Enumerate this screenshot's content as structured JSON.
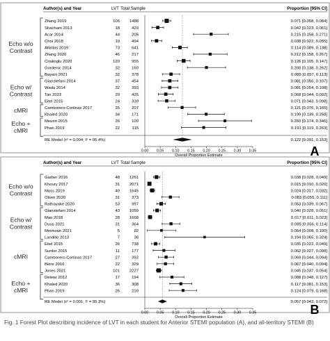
{
  "headers": {
    "study": "Author(s) and Year",
    "lvt": "LVT",
    "total": "Total Sample",
    "proportion": "Proportion [95% CI]"
  },
  "axis_title": "Overall Proportion Estimate",
  "caption": "Fig. 1 Forest Plot describing incidence of LVT in each student for Anterior STEMI population (A), and all-territory STEMI (B)",
  "chart_data": [
    {
      "panel": "A",
      "type": "forest",
      "xlim": [
        0.0,
        0.35
      ],
      "xticks": [
        "0.00",
        "0.05",
        "0.10",
        "0.15",
        "0.20",
        "0.25",
        "0.30",
        "0.35"
      ],
      "groups": [
        {
          "label": [
            "Echo w/o",
            "Contrast"
          ],
          "from": 0,
          "to": 8
        },
        {
          "label": [
            "Echo w/",
            "Contrast"
          ],
          "from": 9,
          "to": 12
        },
        {
          "label": [
            "cMRI"
          ],
          "from": 13,
          "to": 14
        },
        {
          "label": [
            "Echo +",
            "cMRI"
          ],
          "from": 15,
          "to": 17
        }
      ],
      "studies": [
        {
          "study": "Zhang 2019",
          "lvt": "106",
          "total": "1488",
          "est": 0.071,
          "lo": 0.058,
          "hi": 0.084,
          "ci": "0.071 [0.058, 0.084]"
        },
        {
          "study": "Shacham 2013",
          "lvt": "18",
          "total": "429",
          "est": 0.042,
          "lo": 0.023,
          "hi": 0.061,
          "ci": "0.042 [0.023, 0.061]"
        },
        {
          "study": "Acar 2014",
          "lvt": "44",
          "total": "205",
          "est": 0.215,
          "lo": 0.158,
          "hi": 0.271,
          "ci": "0.215 [0.158, 0.271]"
        },
        {
          "study": "Choi 2018",
          "lvt": "19",
          "total": "494",
          "est": 0.038,
          "lo": 0.022,
          "hi": 0.055,
          "ci": "0.038 [0.022, 0.055]"
        },
        {
          "study": "Altintas 2019",
          "lvt": "73",
          "total": "641",
          "est": 0.114,
          "lo": 0.089,
          "hi": 0.138,
          "ci": "0.114 [0.089, 0.138]"
        },
        {
          "study": "Zhang 2020",
          "lvt": "46",
          "total": "217",
          "est": 0.212,
          "lo": 0.158,
          "hi": 0.267,
          "ci": "0.212 [0.158, 0.267]"
        },
        {
          "study": "Ciralioglu 2020",
          "lvt": "120",
          "total": "955",
          "est": 0.126,
          "lo": 0.105,
          "hi": 0.147,
          "ci": "0.126 [0.105, 0.147]"
        },
        {
          "study": "Gordenic 2014",
          "lvt": "32",
          "total": "160",
          "est": 0.2,
          "lo": 0.138,
          "hi": 0.262,
          "ci": "0.200 [0.138, 0.262]"
        },
        {
          "study": "Bayani 2021",
          "lvt": "32",
          "total": "378",
          "est": 0.085,
          "lo": 0.057,
          "hi": 0.113,
          "ci": "0.085 [0.057, 0.113]"
        },
        {
          "study": "Gianstefani 2014",
          "lvt": "37",
          "total": "454",
          "est": 0.081,
          "lo": 0.056,
          "hi": 0.107,
          "ci": "0.081 [0.056, 0.107]"
        },
        {
          "study": "Wada 2014",
          "lvt": "32",
          "total": "393",
          "est": 0.081,
          "lo": 0.054,
          "hi": 0.108,
          "ci": "0.081 [0.054, 0.108]"
        },
        {
          "study": "Tan 2022",
          "lvt": "29",
          "total": "425",
          "est": 0.068,
          "lo": 0.044,
          "hi": 0.092,
          "ci": "0.068 [0.044, 0.092]"
        },
        {
          "study": "Eitel 2015",
          "lvt": "24",
          "total": "339",
          "est": 0.071,
          "lo": 0.043,
          "hi": 0.098,
          "ci": "0.071 [0.043, 0.098]"
        },
        {
          "study": "Camborero-Cortinas 2017",
          "lvt": "25",
          "total": "207",
          "est": 0.121,
          "lo": 0.076,
          "hi": 0.165,
          "ci": "0.121 [0.076, 0.165]"
        },
        {
          "study": "Khaled 2020",
          "lvt": "34",
          "total": "171",
          "est": 0.199,
          "lo": 0.139,
          "hi": 0.258,
          "ci": "0.199 [0.139, 0.258]"
        },
        {
          "study": "Meurin 2015",
          "lvt": "26",
          "total": "100",
          "est": 0.26,
          "lo": 0.174,
          "hi": 0.346,
          "ci": "0.260 [0.174, 0.346]"
        },
        {
          "study": "Phan 2019",
          "lvt": "22",
          "total": "115",
          "est": 0.191,
          "lo": 0.119,
          "hi": 0.263,
          "ci": "0.191 [0.119, 0.263]"
        }
      ],
      "summary": {
        "label": "RE Model (τ² = 0.004; I² = 95.4%)",
        "est": 0.122,
        "lo": 0.091,
        "hi": 0.153,
        "ci": "0.122 [0.091, 0.153]"
      }
    },
    {
      "panel": "B",
      "type": "forest",
      "xlim": [
        0.0,
        0.35
      ],
      "xticks": [
        "0.00",
        "0.05",
        "0.10",
        "0.15",
        "0.20",
        "0.25",
        "0.30",
        "0.35"
      ],
      "groups": [
        {
          "label": [
            "Echo w/o",
            "Contrast"
          ],
          "from": 0,
          "to": 4
        },
        {
          "label": [
            "Echo w/",
            "Contrast"
          ],
          "from": 5,
          "to": 9
        },
        {
          "label": [
            "cMRI"
          ],
          "from": 10,
          "to": 14
        },
        {
          "label": [
            "Echo +",
            "cMRI"
          ],
          "from": 15,
          "to": 18
        }
      ],
      "studies": [
        {
          "study": "Garber 2016",
          "lvt": "48",
          "total": "1261",
          "est": 0.038,
          "lo": 0.028,
          "hi": 0.049,
          "ci": "0.038 [0.028, 0.049]"
        },
        {
          "study": "Khoury 2017",
          "lvt": "31",
          "total": "2071",
          "est": 0.015,
          "lo": 0.01,
          "hi": 0.02,
          "ci": "0.015 [0.010, 0.020]"
        },
        {
          "study": "Moss 2019",
          "lvt": "40",
          "total": "1645",
          "est": 0.024,
          "lo": 0.017,
          "hi": 0.032,
          "ci": "0.024 [0.017, 0.032]"
        },
        {
          "study": "Olsen 2020",
          "lvt": "31",
          "total": "373",
          "est": 0.083,
          "lo": 0.055,
          "hi": 0.111,
          "ci": "0.083 [0.055, 0.111]"
        },
        {
          "study": "Rathayake 2020",
          "lvt": "53",
          "total": "997",
          "est": 0.053,
          "lo": 0.039,
          "hi": 0.067,
          "ci": "0.053 [0.039, 0.067]"
        },
        {
          "study": "Gianstefani 2014",
          "lvt": "43",
          "total": "1059",
          "est": 0.04,
          "lo": 0.028,
          "hi": 0.051,
          "ci": "0.040 [0.028, 0.051]"
        },
        {
          "study": "Mao 2018",
          "lvt": "28",
          "total": "1668",
          "est": 0.017,
          "lo": 0.011,
          "hi": 0.023,
          "ci": "0.017 [0.011, 0.023]"
        },
        {
          "study": "Duus 2021",
          "lvt": "31",
          "total": "364",
          "est": 0.085,
          "lo": 0.056,
          "hi": 0.114,
          "ci": "0.085 [0.056, 0.114]"
        },
        {
          "study": "Meimoun 2021",
          "lvt": "5",
          "total": "92",
          "est": 0.054,
          "lo": 0.008,
          "hi": 0.1,
          "ci": "0.054 [0.008, 0.100]"
        },
        {
          "study": "Landillo 2013",
          "lvt": "7",
          "total": "36",
          "est": 0.194,
          "lo": 0.065,
          "hi": 0.324,
          "ci": "0.194 [0.065, 0.324]"
        },
        {
          "study": "Eitel 2015",
          "lvt": "26",
          "total": "738",
          "est": 0.035,
          "lo": 0.022,
          "hi": 0.049,
          "ci": "0.035 [0.022, 0.049]"
        },
        {
          "study": "Surder 2015",
          "lvt": "11",
          "total": "177",
          "est": 0.062,
          "lo": 0.027,
          "hi": 0.098,
          "ci": "0.062 [0.027, 0.098]"
        },
        {
          "study": "Camborero-Cortinas 2017",
          "lvt": "27",
          "total": "392",
          "est": 0.069,
          "lo": 0.044,
          "hi": 0.094,
          "ci": "0.069 [0.044, 0.094]"
        },
        {
          "study": "Biere 2016",
          "lvt": "22",
          "total": "329",
          "est": 0.067,
          "lo": 0.04,
          "hi": 0.094,
          "ci": "0.067 [0.040, 0.094]"
        },
        {
          "study": "Jones 2021",
          "lvt": "101",
          "total": "2227",
          "est": 0.045,
          "lo": 0.037,
          "hi": 0.054,
          "ci": "0.045 [0.037, 0.054]"
        },
        {
          "study": "Delewi 2012",
          "lvt": "17",
          "total": "194",
          "est": 0.088,
          "lo": 0.048,
          "hi": 0.127,
          "ci": "0.088 [0.048, 0.127]"
        },
        {
          "study": "Khaled 2020",
          "lvt": "36",
          "total": "308",
          "est": 0.117,
          "lo": 0.081,
          "hi": 0.153,
          "ci": "0.117 [0.081, 0.153]"
        },
        {
          "study": "Phan 2019",
          "lvt": "26",
          "total": "210",
          "est": 0.124,
          "lo": 0.079,
          "hi": 0.168,
          "ci": "0.124 [0.079, 0.168]"
        }
      ],
      "summary": {
        "label": "RE Model (τ² = 0.001; I² = 95.3%)",
        "est": 0.057,
        "lo": 0.043,
        "hi": 0.072,
        "ci": "0.057 [0.043, 0.072]"
      }
    }
  ]
}
